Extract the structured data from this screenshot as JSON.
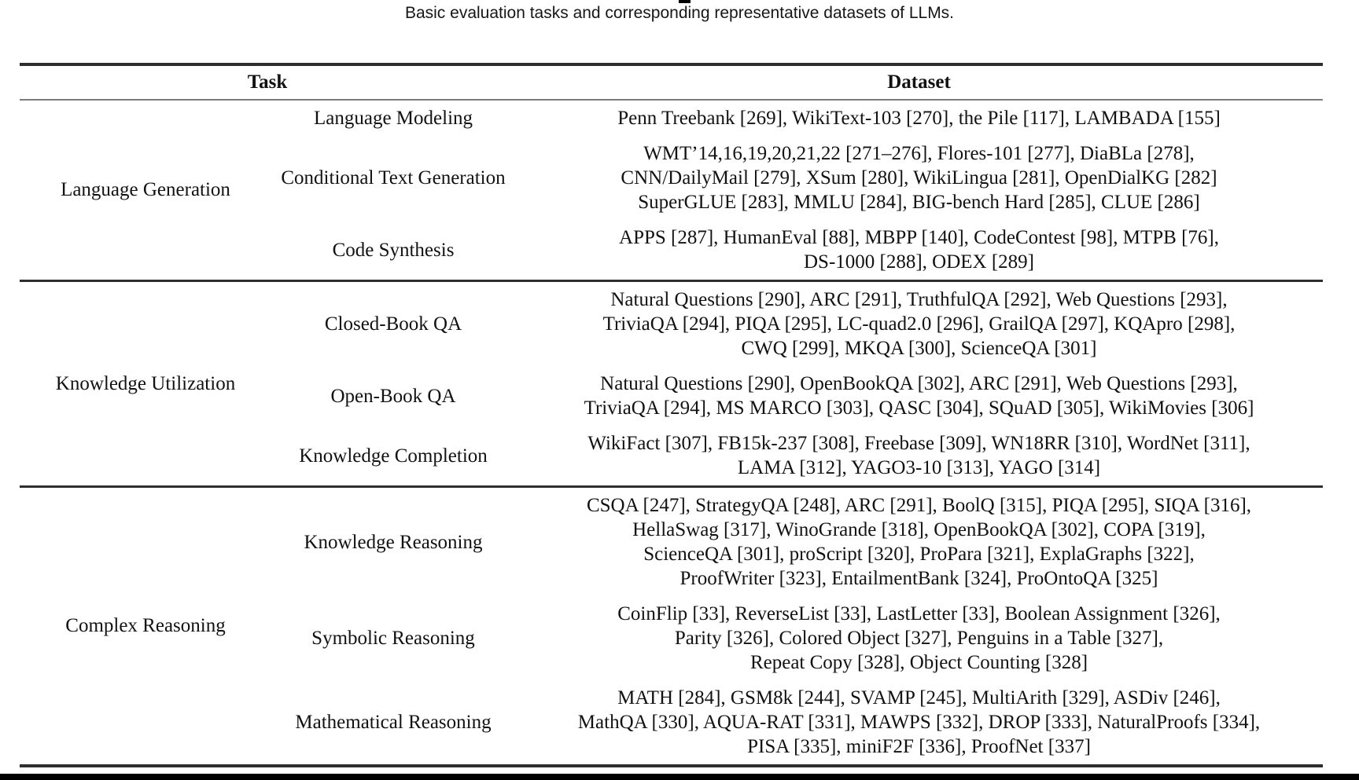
{
  "caption": "Basic evaluation tasks and corresponding representative datasets of LLMs.",
  "header": {
    "task": "Task",
    "dataset": "Dataset"
  },
  "sections": [
    {
      "group": "Language Generation",
      "rows": [
        {
          "task": "Language Modeling",
          "datasets": [
            "Penn Treebank [269], WikiText-103 [270], the Pile [117], LAMBADA [155]"
          ]
        },
        {
          "task": "Conditional Text Generation",
          "datasets": [
            "WMT’14,16,19,20,21,22 [271–276], Flores-101 [277], DiaBLa [278],",
            "CNN/DailyMail [279], XSum [280], WikiLingua [281], OpenDialKG [282]",
            "SuperGLUE [283], MMLU [284], BIG-bench Hard [285], CLUE [286]"
          ]
        },
        {
          "task": "Code Synthesis",
          "datasets": [
            "APPS [287], HumanEval [88], MBPP [140], CodeContest [98], MTPB [76],",
            "DS-1000 [288], ODEX [289]"
          ]
        }
      ]
    },
    {
      "group": "Knowledge Utilization",
      "rows": [
        {
          "task": "Closed-Book QA",
          "datasets": [
            "Natural Questions [290], ARC [291], TruthfulQA [292], Web Questions [293],",
            "TriviaQA [294], PIQA [295], LC-quad2.0 [296], GrailQA [297], KQApro [298],",
            "CWQ [299], MKQA [300], ScienceQA [301]"
          ]
        },
        {
          "task": "Open-Book QA",
          "datasets": [
            "Natural Questions [290], OpenBookQA [302], ARC [291], Web Questions [293],",
            "TriviaQA [294], MS MARCO [303], QASC [304], SQuAD [305], WikiMovies [306]"
          ]
        },
        {
          "task": "Knowledge Completion",
          "datasets": [
            "WikiFact [307], FB15k-237 [308], Freebase [309], WN18RR [310], WordNet [311],",
            "LAMA [312], YAGO3-10 [313], YAGO [314]"
          ]
        }
      ]
    },
    {
      "group": "Complex Reasoning",
      "rows": [
        {
          "task": "Knowledge Reasoning",
          "datasets": [
            "CSQA [247], StrategyQA [248], ARC [291], BoolQ [315], PIQA [295], SIQA [316],",
            "HellaSwag [317], WinoGrande [318], OpenBookQA [302], COPA [319],",
            "ScienceQA [301], proScript [320], ProPara [321], ExplaGraphs [322],",
            "ProofWriter [323], EntailmentBank [324], ProOntoQA [325]"
          ]
        },
        {
          "task": "Symbolic Reasoning",
          "datasets": [
            "CoinFlip [33], ReverseList [33], LastLetter [33], Boolean Assignment [326],",
            "Parity [326], Colored Object [327], Penguins in a Table [327],",
            "Repeat Copy [328], Object Counting [328]"
          ]
        },
        {
          "task": "Mathematical Reasoning",
          "datasets": [
            "MATH [284], GSM8k [244], SVAMP [245], MultiArith [329], ASDiv [246],",
            "MathQA [330], AQUA-RAT [331], MAWPS [332], DROP [333], NaturalProofs [334],",
            "PISA [335], miniF2F [336], ProofNet [337]"
          ]
        }
      ]
    }
  ],
  "colors": {
    "rule_dark": "#2e2e2e",
    "rule_light": "#7d7d7d",
    "text": "#121212",
    "bottom_bar": "#000000"
  }
}
